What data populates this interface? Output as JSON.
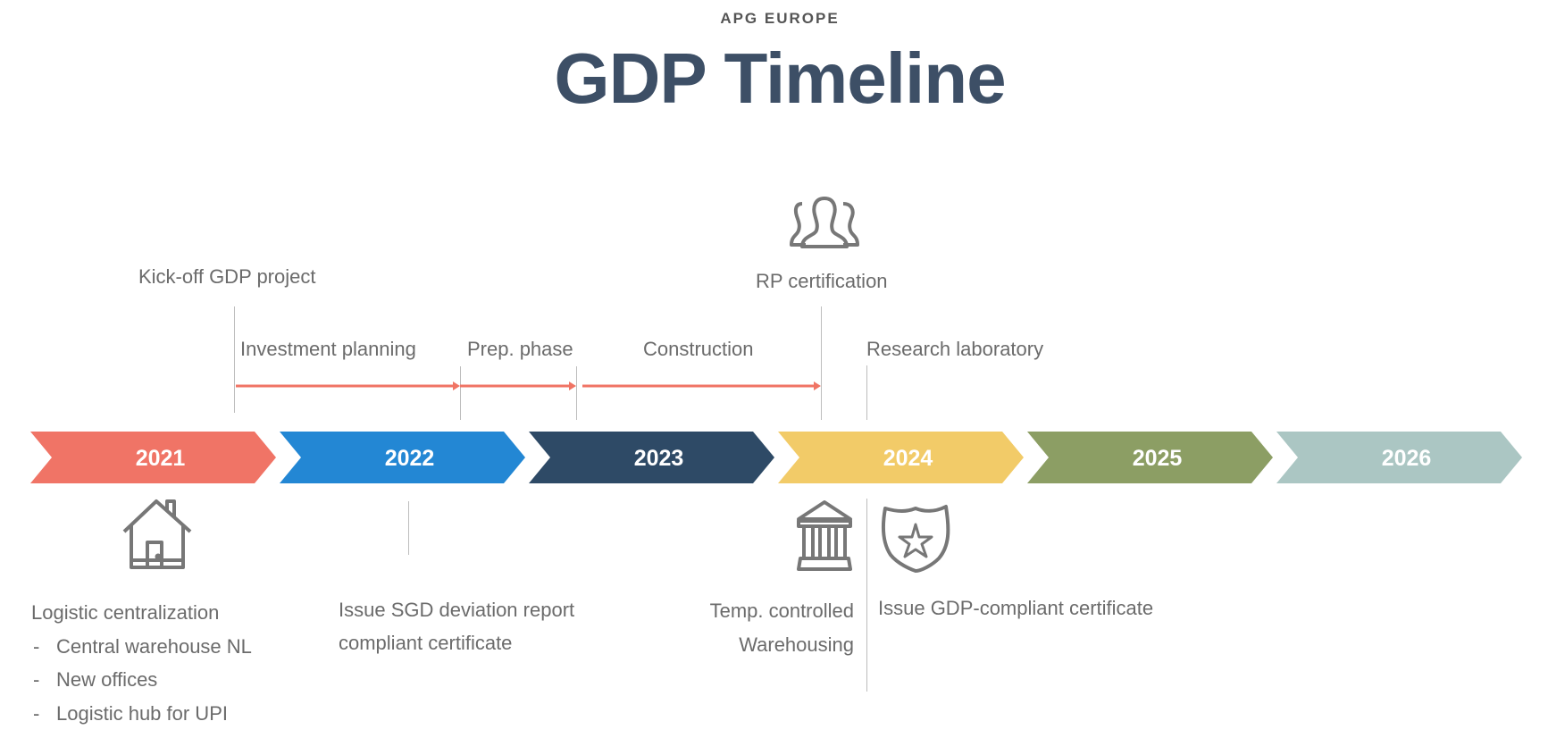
{
  "header": {
    "supertitle": "APG EUROPE",
    "title": "GDP Timeline"
  },
  "years": [
    {
      "label": "2021",
      "color": "#f07466"
    },
    {
      "label": "2022",
      "color": "#2387d4"
    },
    {
      "label": "2023",
      "color": "#2e4a66"
    },
    {
      "label": "2024",
      "color": "#f2cb68"
    },
    {
      "label": "2025",
      "color": "#8c9e64"
    },
    {
      "label": "2026",
      "color": "#abc6c3"
    }
  ],
  "milestones_top": {
    "kickoff": "Kick-off GDP project",
    "rp": "RP certification"
  },
  "phases": [
    "Investment planning",
    "Prep. phase",
    "Construction",
    "Research laboratory"
  ],
  "phase_arrow_color": "#f07464",
  "milestones_bottom": {
    "logistic": {
      "title": "Logistic centralization",
      "items": [
        "Central warehouse NL",
        "New offices",
        "Logistic hub for UPI"
      ],
      "bullet": "-"
    },
    "sgd": {
      "line1": "Issue SGD deviation report",
      "line2": "compliant certificate"
    },
    "temp": {
      "line1": "Temp. controlled",
      "line2": "Warehousing"
    },
    "gdp": "Issue GDP-compliant certificate"
  },
  "icons": [
    "people-icon",
    "house-icon",
    "bank-icon",
    "shield-star-icon"
  ]
}
